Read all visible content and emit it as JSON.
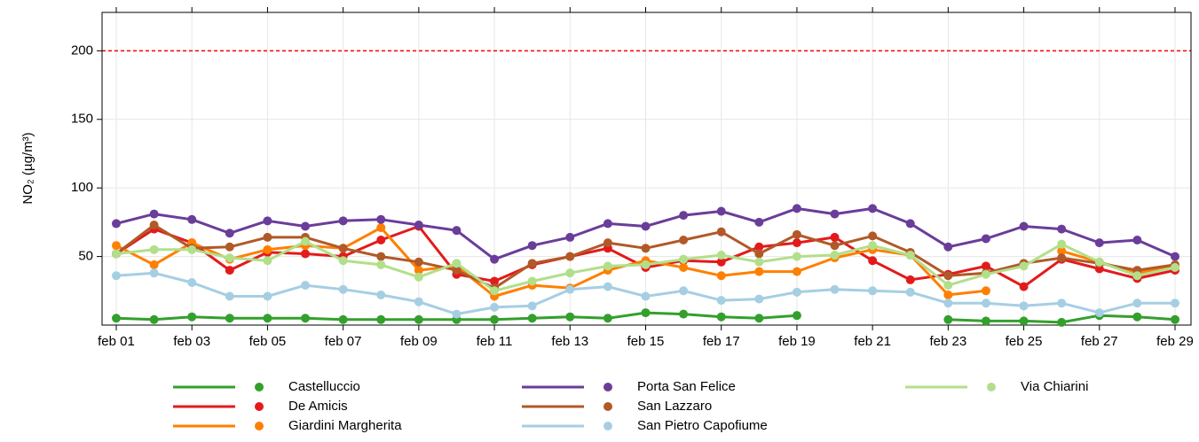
{
  "chart_data": {
    "type": "line",
    "y_label": "NO₂ (µg/m³)",
    "categories": [
      "feb 01",
      null,
      "feb 03",
      null,
      "feb 05",
      null,
      "feb 07",
      null,
      "feb 09",
      null,
      "feb 11",
      null,
      "feb 13",
      null,
      "feb 15",
      null,
      "feb 17",
      null,
      "feb 19",
      null,
      "feb 21",
      null,
      "feb 23",
      null,
      "feb 25",
      null,
      "feb 27",
      null,
      "feb 29"
    ],
    "ylim": [
      0,
      228
    ],
    "yticks": [
      50,
      100,
      150,
      200
    ],
    "grid": true,
    "reference_line": {
      "value": 200,
      "color": "#ff0000"
    },
    "series": [
      {
        "name": "Castelluccio",
        "color": "#33a02c",
        "values": [
          5,
          4,
          6,
          5,
          5,
          5,
          4,
          4,
          4,
          4,
          4,
          5,
          6,
          5,
          9,
          8,
          6,
          5,
          7,
          null,
          null,
          null,
          4,
          3,
          3,
          2,
          7,
          6,
          4
        ]
      },
      {
        "name": "De Amicis",
        "color": "#e31a1c",
        "values": [
          52,
          70,
          60,
          40,
          53,
          52,
          50,
          62,
          72,
          37,
          32,
          44,
          50,
          56,
          42,
          47,
          46,
          57,
          60,
          64,
          47,
          33,
          37,
          43,
          28,
          48,
          41,
          34,
          40
        ]
      },
      {
        "name": "Giardini Margherita",
        "color": "#ff7f00",
        "values": [
          58,
          44,
          60,
          48,
          55,
          58,
          56,
          71,
          40,
          43,
          21,
          29,
          27,
          40,
          47,
          42,
          36,
          39,
          39,
          49,
          55,
          51,
          22,
          25,
          null,
          54,
          46,
          38,
          43
        ]
      },
      {
        "name": "Porta San Felice",
        "color": "#6a3d9a",
        "values": [
          74,
          81,
          77,
          67,
          76,
          72,
          76,
          77,
          73,
          69,
          48,
          58,
          64,
          74,
          72,
          80,
          83,
          75,
          85,
          81,
          85,
          74,
          57,
          63,
          72,
          70,
          60,
          62,
          50
        ]
      },
      {
        "name": "San Lazzaro",
        "color": "#b15928",
        "values": [
          52,
          73,
          56,
          57,
          64,
          64,
          56,
          50,
          46,
          40,
          27,
          45,
          50,
          60,
          56,
          62,
          68,
          52,
          66,
          58,
          65,
          53,
          36,
          38,
          45,
          49,
          45,
          40,
          44
        ]
      },
      {
        "name": "San Pietro Capofiume",
        "color": "#a6cee3",
        "values": [
          36,
          38,
          31,
          21,
          21,
          29,
          26,
          22,
          17,
          8,
          13,
          14,
          26,
          28,
          21,
          25,
          18,
          19,
          24,
          26,
          25,
          24,
          16,
          16,
          14,
          16,
          9,
          16,
          16
        ]
      },
      {
        "name": "Via Chiarini",
        "color": "#b2df8a",
        "values": [
          52,
          55,
          55,
          49,
          47,
          61,
          47,
          44,
          35,
          45,
          25,
          32,
          38,
          43,
          44,
          48,
          51,
          46,
          50,
          51,
          58,
          51,
          29,
          37,
          43,
          59,
          46,
          36,
          42
        ]
      }
    ]
  }
}
